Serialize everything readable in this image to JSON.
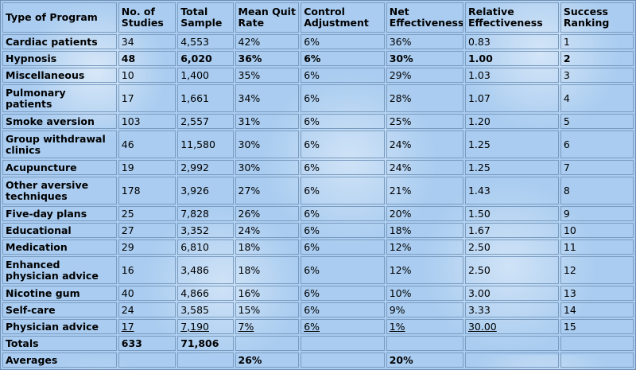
{
  "headers": [
    "Type of Program",
    "No. of Studies",
    "Total Sample",
    "Mean Quit Rate",
    "Control Adjustment",
    "Net Effectiveness",
    "Relative Effectiveness",
    "Success Ranking"
  ],
  "rows": [
    {
      "program": "Cardiac patients",
      "studies": "34",
      "sample": "4,553",
      "quit": "42%",
      "control": "6%",
      "net": "36%",
      "relative": "0.83",
      "rank": "1"
    },
    {
      "program": "Hypnosis",
      "studies": "48",
      "sample": "6,020",
      "quit": "36%",
      "control": "6%",
      "net": "30%",
      "relative": "1.00",
      "rank": "2"
    },
    {
      "program": "Miscellaneous",
      "studies": "10",
      "sample": "1,400",
      "quit": "35%",
      "control": "6%",
      "net": "29%",
      "relative": "1.03",
      "rank": "3"
    },
    {
      "program": "Pulmonary patients",
      "studies": "17",
      "sample": "1,661",
      "quit": "34%",
      "control": "6%",
      "net": "28%",
      "relative": "1.07",
      "rank": "4"
    },
    {
      "program": "Smoke aversion",
      "studies": "103",
      "sample": "2,557",
      "quit": "31%",
      "control": "6%",
      "net": "25%",
      "relative": "1.20",
      "rank": "5"
    },
    {
      "program": "Group withdrawal clinics",
      "studies": "46",
      "sample": "11,580",
      "quit": "30%",
      "control": "6%",
      "net": "24%",
      "relative": "1.25",
      "rank": "6"
    },
    {
      "program": "Acupuncture",
      "studies": "19",
      "sample": "2,992",
      "quit": "30%",
      "control": "6%",
      "net": "24%",
      "relative": "1.25",
      "rank": "7"
    },
    {
      "program": "Other aversive techniques",
      "studies": "178",
      "sample": "3,926",
      "quit": "27%",
      "control": "6%",
      "net": "21%",
      "relative": "1.43",
      "rank": "8"
    },
    {
      "program": "Five-day plans",
      "studies": "25",
      "sample": "7,828",
      "quit": "26%",
      "control": "6%",
      "net": "20%",
      "relative": "1.50",
      "rank": "9"
    },
    {
      "program": "Educational",
      "studies": "27",
      "sample": "3,352",
      "quit": "24%",
      "control": "6%",
      "net": "18%",
      "relative": "1.67",
      "rank": "10"
    },
    {
      "program": "Medication",
      "studies": "29",
      "sample": "6,810",
      "quit": "18%",
      "control": "6%",
      "net": "12%",
      "relative": "2.50",
      "rank": "11"
    },
    {
      "program": "Enhanced physician advice",
      "studies": "16",
      "sample": "3,486",
      "quit": "18%",
      "control": "6%",
      "net": "12%",
      "relative": "2.50",
      "rank": "12"
    },
    {
      "program": "Nicotine gum",
      "studies": "40",
      "sample": "4,866",
      "quit": "16%",
      "control": "6%",
      "net": "10%",
      "relative": "3.00",
      "rank": "13"
    },
    {
      "program": "Self-care",
      "studies": "24",
      "sample": "3,585",
      "quit": "15%",
      "control": "6%",
      "net": "9%",
      "relative": "3.33",
      "rank": "14"
    },
    {
      "program": "Physician advice",
      "studies": "17",
      "sample": "7,190",
      "quit": "7%",
      "control": "6%",
      "net": "1%",
      "relative": "30.00",
      "rank": "15"
    }
  ],
  "totals": {
    "label": "Totals",
    "studies": "633",
    "sample": "71,806"
  },
  "averages": {
    "label": "Averages",
    "quit": "26%",
    "net": "20%"
  },
  "colors": {
    "background": "#a9ccf0",
    "border": "#7a9cc0"
  }
}
